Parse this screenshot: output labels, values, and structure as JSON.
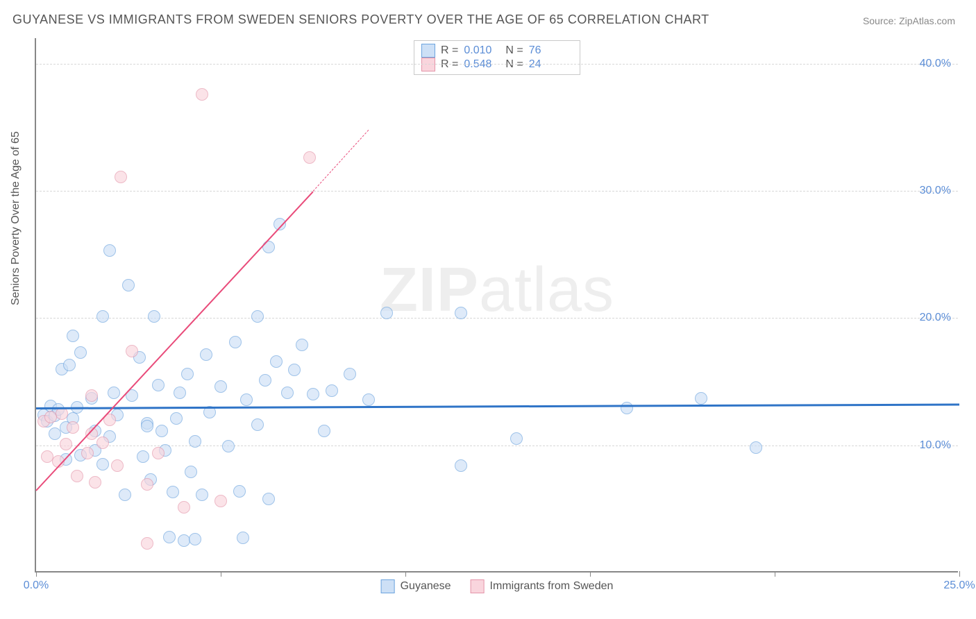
{
  "title": "GUYANESE VS IMMIGRANTS FROM SWEDEN SENIORS POVERTY OVER THE AGE OF 65 CORRELATION CHART",
  "source": "Source: ZipAtlas.com",
  "watermark_bold": "ZIP",
  "watermark_light": "atlas",
  "y_axis_label": "Seniors Poverty Over the Age of 65",
  "chart": {
    "type": "scatter",
    "xlim": [
      0,
      25
    ],
    "ylim": [
      0,
      42
    ],
    "x_ticks": [
      0,
      5,
      10,
      15,
      20,
      25
    ],
    "x_tick_labels": [
      "0.0%",
      "",
      "",
      "",
      "",
      "25.0%"
    ],
    "y_ticks": [
      10,
      20,
      30,
      40
    ],
    "y_tick_labels": [
      "10.0%",
      "20.0%",
      "30.0%",
      "40.0%"
    ],
    "grid_color": "#d7d7d7",
    "axis_color": "#878787",
    "tick_label_color": "#5b8dd6",
    "background_color": "#ffffff",
    "marker_size": 18,
    "series": [
      {
        "name": "Guyanese",
        "fill_color": "#cde0f6",
        "stroke_color": "#6ba3de",
        "fill_opacity": 0.65,
        "r_value": "0.010",
        "n_value": "76",
        "trend": {
          "x1": 0,
          "y1": 13.0,
          "x2": 25,
          "y2": 13.3,
          "color": "#2f74c7",
          "width": 2.5,
          "dash_extend": false
        },
        "points": [
          [
            0.2,
            12.3
          ],
          [
            0.3,
            11.8
          ],
          [
            0.4,
            13.0
          ],
          [
            0.5,
            12.2
          ],
          [
            0.5,
            10.8
          ],
          [
            0.6,
            12.7
          ],
          [
            0.7,
            15.9
          ],
          [
            0.8,
            11.3
          ],
          [
            0.8,
            8.8
          ],
          [
            0.9,
            16.2
          ],
          [
            1.0,
            12.0
          ],
          [
            1.0,
            18.5
          ],
          [
            1.1,
            12.9
          ],
          [
            1.2,
            9.1
          ],
          [
            1.2,
            17.2
          ],
          [
            1.5,
            13.6
          ],
          [
            1.6,
            9.5
          ],
          [
            1.6,
            11.0
          ],
          [
            1.8,
            20.0
          ],
          [
            1.8,
            8.4
          ],
          [
            2.0,
            10.6
          ],
          [
            2.0,
            25.2
          ],
          [
            2.1,
            14.0
          ],
          [
            2.2,
            12.3
          ],
          [
            2.4,
            6.0
          ],
          [
            2.5,
            22.5
          ],
          [
            2.6,
            13.8
          ],
          [
            2.8,
            16.8
          ],
          [
            2.9,
            9.0
          ],
          [
            3.0,
            11.6
          ],
          [
            3.1,
            7.2
          ],
          [
            3.2,
            20.0
          ],
          [
            3.3,
            14.6
          ],
          [
            3.4,
            11.0
          ],
          [
            3.5,
            9.5
          ],
          [
            3.6,
            2.7
          ],
          [
            3.7,
            6.2
          ],
          [
            3.8,
            12.0
          ],
          [
            3.9,
            14.0
          ],
          [
            4.0,
            2.4
          ],
          [
            4.1,
            15.5
          ],
          [
            4.2,
            7.8
          ],
          [
            4.3,
            10.2
          ],
          [
            4.5,
            6.0
          ],
          [
            4.6,
            17.0
          ],
          [
            4.7,
            12.5
          ],
          [
            5.0,
            14.5
          ],
          [
            5.2,
            9.8
          ],
          [
            5.4,
            18.0
          ],
          [
            5.5,
            6.3
          ],
          [
            5.6,
            2.6
          ],
          [
            5.7,
            13.5
          ],
          [
            6.0,
            11.5
          ],
          [
            6.0,
            20.0
          ],
          [
            6.2,
            15.0
          ],
          [
            6.3,
            25.5
          ],
          [
            6.3,
            5.7
          ],
          [
            6.5,
            16.5
          ],
          [
            6.6,
            27.3
          ],
          [
            6.8,
            14.0
          ],
          [
            7.0,
            15.8
          ],
          [
            7.2,
            17.8
          ],
          [
            7.5,
            13.9
          ],
          [
            7.8,
            11.0
          ],
          [
            8.0,
            14.2
          ],
          [
            8.5,
            15.5
          ],
          [
            9.0,
            13.5
          ],
          [
            9.5,
            20.3
          ],
          [
            11.5,
            8.3
          ],
          [
            13.0,
            10.4
          ],
          [
            16.0,
            12.8
          ],
          [
            18.0,
            13.6
          ],
          [
            19.5,
            9.7
          ],
          [
            11.5,
            20.3
          ],
          [
            3.0,
            11.4
          ],
          [
            4.3,
            2.5
          ]
        ]
      },
      {
        "name": "Immigrants from Sweden",
        "fill_color": "#f9d5dd",
        "stroke_color": "#e494a9",
        "fill_opacity": 0.65,
        "r_value": "0.548",
        "n_value": "24",
        "trend": {
          "x1": 0,
          "y1": 6.5,
          "x2": 7.5,
          "y2": 30.0,
          "color": "#e94b7a",
          "width": 2,
          "dash_extend": true,
          "dash_x2": 9.0,
          "dash_y2": 34.8
        },
        "points": [
          [
            0.2,
            11.8
          ],
          [
            0.3,
            9.0
          ],
          [
            0.4,
            12.1
          ],
          [
            0.6,
            8.6
          ],
          [
            0.7,
            12.4
          ],
          [
            0.8,
            10.0
          ],
          [
            1.0,
            11.3
          ],
          [
            1.1,
            7.5
          ],
          [
            1.4,
            9.3
          ],
          [
            1.5,
            10.8
          ],
          [
            1.5,
            13.8
          ],
          [
            1.6,
            7.0
          ],
          [
            1.8,
            10.1
          ],
          [
            2.0,
            11.9
          ],
          [
            2.2,
            8.3
          ],
          [
            2.3,
            31.0
          ],
          [
            2.6,
            17.3
          ],
          [
            3.0,
            2.2
          ],
          [
            3.0,
            6.8
          ],
          [
            3.3,
            9.3
          ],
          [
            4.0,
            5.0
          ],
          [
            4.5,
            37.5
          ],
          [
            5.0,
            5.5
          ],
          [
            7.4,
            32.5
          ]
        ]
      }
    ]
  },
  "legend_top": {
    "r_label": "R =",
    "n_label": "N ="
  },
  "legend_bottom": {
    "series1": "Guyanese",
    "series2": "Immigrants from Sweden"
  }
}
